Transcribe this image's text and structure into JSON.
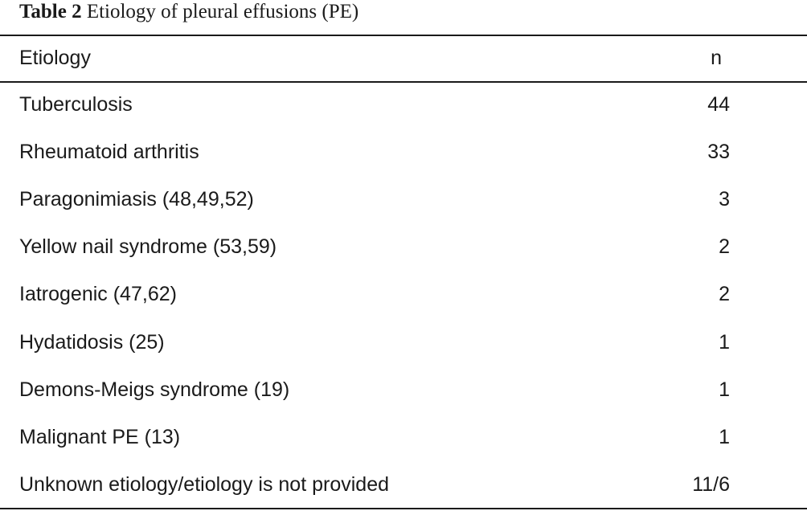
{
  "caption": {
    "label": "Table 2",
    "title": "Etiology of pleural effusions (PE)"
  },
  "table": {
    "headers": [
      "Etiology",
      "n"
    ],
    "rows": [
      {
        "etiology": "Tuberculosis",
        "n": "44"
      },
      {
        "etiology": "Rheumatoid arthritis",
        "n": "33"
      },
      {
        "etiology": "Paragonimiasis (48,49,52)",
        "n": "3"
      },
      {
        "etiology": "Yellow nail syndrome (53,59)",
        "n": "2"
      },
      {
        "etiology": "Iatrogenic (47,62)",
        "n": "2"
      },
      {
        "etiology": "Hydatidosis (25)",
        "n": "1"
      },
      {
        "etiology": "Demons-Meigs syndrome (19)",
        "n": "1"
      },
      {
        "etiology": "Malignant PE (13)",
        "n": "1"
      },
      {
        "etiology": "Unknown etiology/etiology is not provided",
        "n": "11/6"
      }
    ]
  }
}
